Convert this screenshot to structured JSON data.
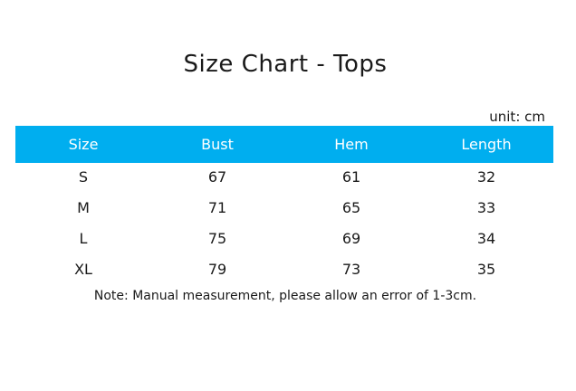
{
  "title": "Size Chart - Tops",
  "unit_label": "unit: cm",
  "colors": {
    "header_background": "#00aeef",
    "header_text": "#ffffff"
  },
  "table": {
    "headers": [
      "Size",
      "Bust",
      "Hem",
      "Length"
    ],
    "rows": [
      [
        "S",
        "67",
        "61",
        "32"
      ],
      [
        "M",
        "71",
        "65",
        "33"
      ],
      [
        "L",
        "75",
        "69",
        "34"
      ],
      [
        "XL",
        "79",
        "73",
        "35"
      ]
    ]
  },
  "note": "Note: Manual measurement, please allow an error of 1-3cm."
}
